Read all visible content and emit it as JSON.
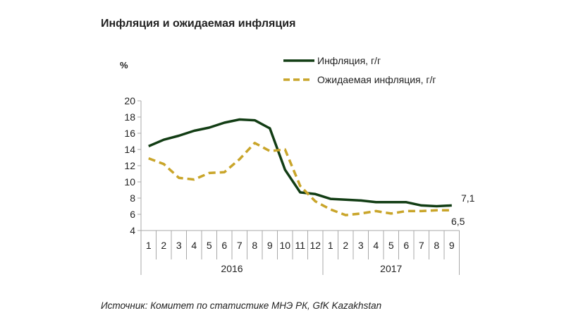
{
  "chart_data": {
    "type": "line",
    "title": "Инфляция и ожидаемая инфляция",
    "ylabel": "%",
    "ylim": [
      4,
      20
    ],
    "yticks": [
      4,
      6,
      8,
      10,
      12,
      14,
      16,
      18,
      20
    ],
    "grid": false,
    "legend_position": "top-right",
    "categories": [
      "1",
      "2",
      "3",
      "4",
      "5",
      "6",
      "7",
      "8",
      "9",
      "10",
      "11",
      "12",
      "1",
      "2",
      "3",
      "4",
      "5",
      "6",
      "7",
      "8",
      "9"
    ],
    "year_groups": [
      {
        "label": "2016",
        "count": 12
      },
      {
        "label": "2017",
        "count": 9
      }
    ],
    "series": [
      {
        "name": "Инфляция, г/г",
        "color": "#123d14",
        "style": "solid",
        "values": [
          14.4,
          15.2,
          15.7,
          16.3,
          16.7,
          17.3,
          17.7,
          17.6,
          16.6,
          11.5,
          8.7,
          8.5,
          7.9,
          7.8,
          7.7,
          7.5,
          7.5,
          7.5,
          7.1,
          7.0,
          7.1
        ],
        "end_label": "7,1"
      },
      {
        "name": "Ожидаемая инфляция, г/г",
        "color": "#c9a52a",
        "style": "dashed",
        "values": [
          12.9,
          12.2,
          10.5,
          10.3,
          11.1,
          11.2,
          12.8,
          14.8,
          13.8,
          14.0,
          9.5,
          7.6,
          6.6,
          5.9,
          6.1,
          6.4,
          6.1,
          6.4,
          6.4,
          6.5,
          6.5
        ],
        "end_label": "6,5"
      }
    ],
    "source": "Источник: Комитет по статистике МНЭ РК, GfK Kazakhstan"
  }
}
